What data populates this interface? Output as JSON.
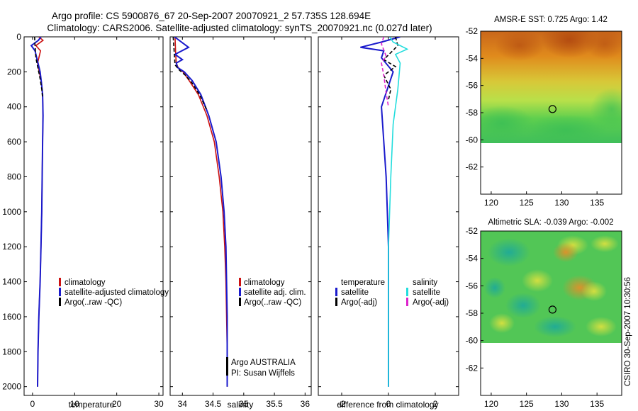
{
  "header": {
    "title_line1": "Argo profile: CS 5900876_67 20-Sep-2007 20070921_2 57.735S 128.694E",
    "title_line2": "Climatology: CARS2006. Satellite-adjusted climatology: synTS_20070921.nc (0.027d later)"
  },
  "credit": "CSIRO 30-Sep-2007 10:30:56",
  "colors": {
    "climatology": "#cc1111",
    "satellite": "#1a1acc",
    "argo": "#000000",
    "salinity_satellite": "#22dddd",
    "salinity_argo": "#dd22cc"
  },
  "chart_data": [
    {
      "id": "temperature",
      "type": "line",
      "xlabel": "temperature",
      "ylabel": "",
      "xlim": [
        -2,
        31
      ],
      "ylim": [
        2050,
        0
      ],
      "xticks": [
        0,
        10,
        20,
        30
      ],
      "yticks": [
        0,
        200,
        400,
        600,
        800,
        1000,
        1200,
        1400,
        1600,
        1800,
        2000
      ],
      "legend": [
        "climatology",
        "satellite-adjusted climatology",
        "Argo(..raw -QC)"
      ],
      "legend_position": "lower-right",
      "series": [
        {
          "name": "climatology",
          "color": "#cc1111",
          "x": [
            1.5,
            2.5,
            0.8,
            1.9,
            1.2,
            1.6,
            2.1,
            2.4,
            2.5,
            2.4,
            2.3,
            2.2,
            2.0,
            1.8,
            1.5,
            1.3,
            1.2
          ],
          "y": [
            0,
            20,
            50,
            80,
            150,
            200,
            260,
            330,
            450,
            600,
            800,
            1000,
            1200,
            1400,
            1600,
            1800,
            2000
          ]
        },
        {
          "name": "satellite-adjusted climatology",
          "color": "#1a1acc",
          "x": [
            2.0,
            1.4,
            -0.3,
            0.6,
            1.3,
            1.8,
            2.1,
            2.4,
            2.5,
            2.4,
            2.3,
            2.2,
            2.0,
            1.8,
            1.5,
            1.3,
            1.2
          ],
          "y": [
            0,
            20,
            50,
            80,
            150,
            200,
            260,
            330,
            450,
            600,
            800,
            1000,
            1200,
            1400,
            1600,
            1800,
            2000
          ]
        },
        {
          "name": "Argo(..raw -QC)",
          "color": "#000000",
          "x": [
            0.5,
            0.6,
            0.8,
            1.3,
            1.8,
            2.2,
            2.4
          ],
          "y": [
            0,
            50,
            120,
            180,
            240,
            300,
            350
          ]
        }
      ]
    },
    {
      "id": "salinity",
      "type": "line",
      "xlabel": "salinity",
      "ylabel": "",
      "xlim": [
        33.8,
        36.1
      ],
      "ylim": [
        2050,
        0
      ],
      "xticks": [
        34,
        34.5,
        35,
        35.5,
        36
      ],
      "yticks": [
        0,
        200,
        400,
        600,
        800,
        1000,
        1200,
        1400,
        1600,
        1800,
        2000
      ],
      "legend": [
        "climatology",
        "satellite adj. clim.",
        "Argo(..raw -QC)"
      ],
      "legend_position": "lower-right",
      "annotation": [
        "Argo AUSTRALIA",
        "PI: Susan Wijffels"
      ],
      "series": [
        {
          "name": "climatology",
          "color": "#cc1111",
          "x": [
            33.88,
            33.89,
            33.9,
            33.93,
            34.01,
            34.11,
            34.26,
            34.4,
            34.52,
            34.6,
            34.66,
            34.69,
            34.71,
            34.72,
            34.73,
            34.73,
            34.73
          ],
          "y": [
            0,
            100,
            150,
            175,
            200,
            250,
            330,
            450,
            600,
            800,
            1000,
            1200,
            1400,
            1600,
            1800,
            1900,
            2000
          ]
        },
        {
          "name": "satellite adj. clim.",
          "color": "#1a1acc",
          "x": [
            33.87,
            34.1,
            33.88,
            34.0,
            33.9,
            33.92,
            34.03,
            34.16,
            34.3,
            34.43,
            34.55,
            34.63,
            34.68,
            34.71,
            34.72,
            34.73,
            34.73,
            34.73
          ],
          "y": [
            0,
            60,
            100,
            130,
            150,
            175,
            200,
            250,
            330,
            450,
            600,
            800,
            1000,
            1200,
            1400,
            1600,
            1800,
            2000
          ]
        },
        {
          "name": "Argo(..raw -QC)",
          "color": "#000000",
          "x": [
            33.85,
            33.88,
            33.95,
            34.05,
            34.15,
            34.28,
            34.4
          ],
          "y": [
            0,
            160,
            190,
            220,
            260,
            330,
            420
          ]
        }
      ]
    },
    {
      "id": "difference",
      "type": "line",
      "xlabel": "difference from climatology",
      "ylabel": "",
      "xlim": [
        -3,
        3
      ],
      "ylim": [
        2050,
        0
      ],
      "xticks": [
        -2,
        0,
        2
      ],
      "yticks": [
        0,
        200,
        400,
        600,
        800,
        1000,
        1200,
        1400,
        1600,
        1800,
        2000
      ],
      "legend_groups": [
        {
          "title": "temperature",
          "items": [
            "satellite",
            "Argo(-adj)"
          ]
        },
        {
          "title": "salinity",
          "items": [
            "satellite",
            "Argo(-adj)"
          ]
        }
      ],
      "legend_position": "lower-center",
      "series": [
        {
          "name": "temperature satellite",
          "color": "#1a1acc",
          "x": [
            0.5,
            -0.3,
            -1.2,
            -0.2,
            -0.3,
            0.2,
            -0.3,
            -0.2,
            -0.1,
            -0.05,
            0,
            0,
            0,
            0,
            0
          ],
          "y": [
            0,
            30,
            60,
            80,
            120,
            200,
            400,
            600,
            800,
            1000,
            1200,
            1400,
            1600,
            1800,
            2000
          ]
        },
        {
          "name": "temperature Argo(-adj)",
          "color": "#000000",
          "x": [
            0.3,
            0.4,
            -0.2,
            0.3,
            -0.2,
            0.1,
            0
          ],
          "y": [
            0,
            50,
            130,
            170,
            220,
            300,
            360
          ]
        },
        {
          "name": "salinity satellite",
          "color": "#22dddd",
          "x": [
            0.05,
            0.2,
            0.8,
            0.3,
            0.5,
            0.4,
            0.2,
            0.1,
            0,
            0,
            0
          ],
          "y": [
            0,
            30,
            70,
            100,
            150,
            300,
            500,
            800,
            1200,
            1600,
            2000
          ]
        },
        {
          "name": "salinity Argo(-adj)",
          "color": "#dd22cc",
          "x": [
            -0.2,
            -0.3,
            -0.1,
            -0.3,
            -0.2,
            -0.1,
            0
          ],
          "y": [
            0,
            40,
            110,
            150,
            220,
            320,
            400
          ]
        }
      ]
    },
    {
      "id": "sst_map",
      "type": "heatmap",
      "title": "AMSR-E SST: 0.725 Argo: 1.42",
      "xlim": [
        118.5,
        138.5
      ],
      "ylim": [
        -64,
        -52
      ],
      "xticks": [
        120,
        125,
        130,
        135
      ],
      "yticks": [
        -52,
        -54,
        -56,
        -58,
        -60,
        -62
      ],
      "data_extent_lat": [
        -60,
        -52
      ],
      "marker": {
        "lon": 128.694,
        "lat": -57.735
      }
    },
    {
      "id": "sla_map",
      "type": "heatmap",
      "title": "Altimetric SLA: -0.039 Argo: -0.002",
      "xlim": [
        118.5,
        138.5
      ],
      "ylim": [
        -64,
        -52
      ],
      "xticks": [
        120,
        125,
        130,
        135
      ],
      "yticks": [
        -52,
        -54,
        -56,
        -58,
        -60,
        -62
      ],
      "data_extent_lat": [
        -60,
        -52
      ],
      "marker": {
        "lon": 128.694,
        "lat": -57.735
      }
    }
  ]
}
